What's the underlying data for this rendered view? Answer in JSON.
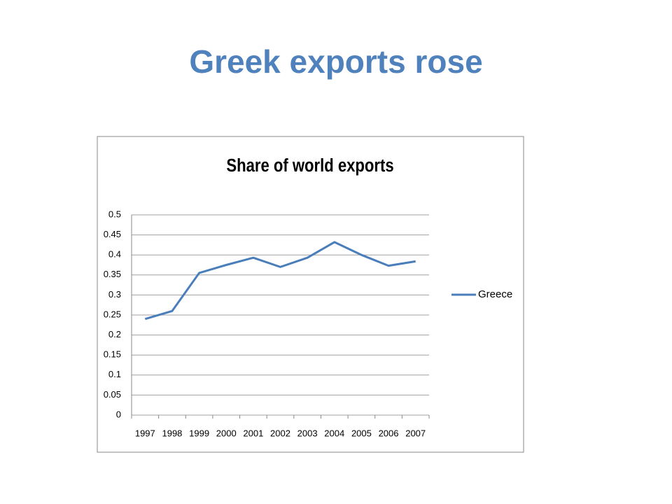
{
  "title": "Greek exports rose",
  "chart_data": {
    "type": "line",
    "title": "Share of world exports",
    "categories": [
      "1997",
      "1998",
      "1999",
      "2000",
      "2001",
      "2002",
      "2003",
      "2004",
      "2005",
      "2006",
      "2007"
    ],
    "series": [
      {
        "name": "Greece",
        "color": "#4a7ebb",
        "values": [
          0.24,
          0.26,
          0.355,
          0.375,
          0.393,
          0.37,
          0.393,
          0.432,
          0.4,
          0.373,
          0.384
        ]
      }
    ],
    "ylim": [
      0,
      0.5
    ],
    "yticks": [
      0,
      0.05,
      0.1,
      0.15,
      0.2,
      0.25,
      0.3,
      0.35,
      0.4,
      0.45,
      0.5
    ],
    "grid": true,
    "legend": "right"
  }
}
